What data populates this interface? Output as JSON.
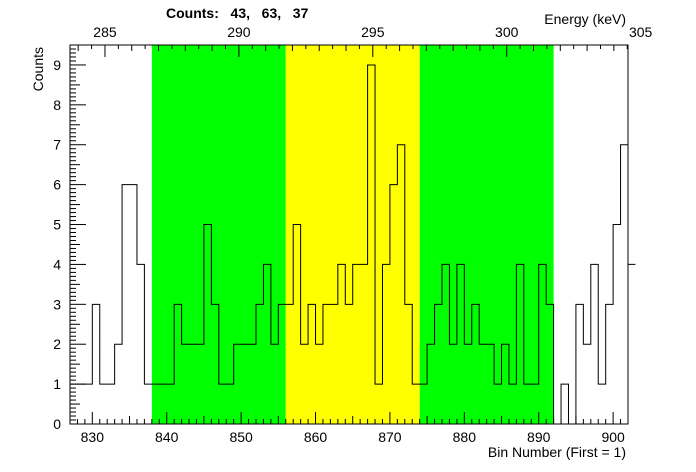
{
  "chart_data": {
    "type": "histogram",
    "title": "Counts:   43,   63,   37",
    "xlabel": "Bin Number (First = 1)",
    "ylabel": "Counts",
    "x2label": "Energy (keV)",
    "xlim": [
      827,
      902
    ],
    "ylim": [
      0,
      9.5
    ],
    "x_ticks": [
      830,
      840,
      850,
      860,
      870,
      880,
      890,
      900
    ],
    "y_ticks": [
      0,
      1,
      2,
      3,
      4,
      5,
      6,
      7,
      8,
      9
    ],
    "energy_ticks": [
      285,
      290,
      295,
      300,
      305
    ],
    "energy_axis": {
      "bin_at_285": 831.7,
      "bins_per_keV": 3.6
    },
    "regions": [
      {
        "x_start": 838,
        "x_end": 856,
        "color": "#00ff00"
      },
      {
        "x_start": 856,
        "x_end": 874,
        "color": "#ffff00"
      },
      {
        "x_start": 874,
        "x_end": 892,
        "color": "#00ff00"
      }
    ],
    "bin_start": 827,
    "bin_width": 1,
    "values": [
      1,
      1,
      1,
      3,
      1,
      1,
      2,
      6,
      6,
      4,
      1,
      1,
      1,
      1,
      3,
      2,
      2,
      2,
      5,
      3,
      1,
      1,
      2,
      2,
      2,
      3,
      4,
      2,
      3,
      3,
      5,
      2,
      3,
      2,
      3,
      3,
      4,
      3,
      4,
      4,
      9,
      1,
      4,
      6,
      7,
      3,
      1,
      1,
      2,
      3,
      4,
      2,
      4,
      2,
      3,
      2,
      2,
      1,
      2,
      1,
      4,
      1,
      1,
      4,
      3,
      0,
      1,
      0,
      3,
      2,
      4,
      1,
      3,
      5,
      7,
      4
    ]
  }
}
